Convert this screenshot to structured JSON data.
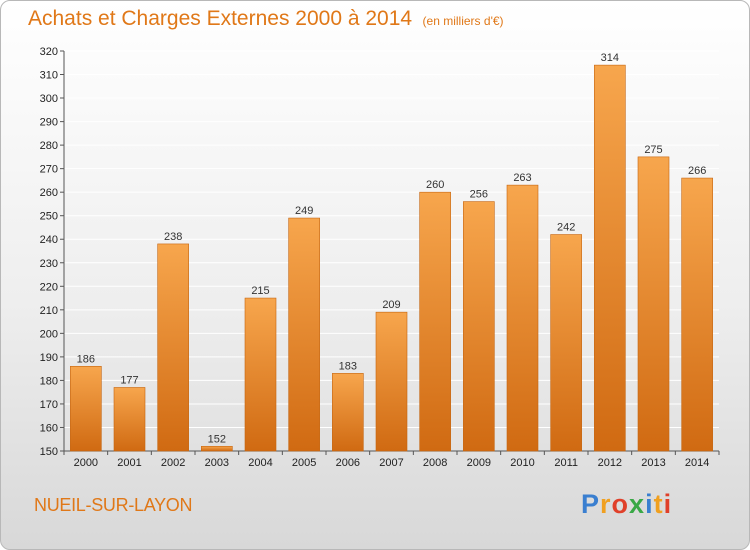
{
  "header": {
    "title": "Achats et Charges Externes 2000 à 2014",
    "subtitle": "(en milliers d'€)"
  },
  "footer": {
    "commune": "NUEIL-SUR-LAYON",
    "logo_letters": [
      {
        "char": "P",
        "color": "#3a7fd0"
      },
      {
        "char": "r",
        "color": "#f0a020"
      },
      {
        "char": "o",
        "color": "#e0402a"
      },
      {
        "char": "x",
        "color": "#39a846"
      },
      {
        "char": "i",
        "color": "#3a7fd0"
      },
      {
        "char": "t",
        "color": "#f0a020"
      },
      {
        "char": "i",
        "color": "#e0402a"
      }
    ]
  },
  "colors": {
    "accent": "#e07818",
    "bar_top": "#f7a64d",
    "bar_bottom": "#d06a12",
    "grid": "#ffffff"
  },
  "chart_data": {
    "type": "bar",
    "title": "Achats et Charges Externes 2000 à 2014",
    "subtitle": "(en milliers d'€)",
    "categories": [
      "2000",
      "2001",
      "2002",
      "2003",
      "2004",
      "2005",
      "2006",
      "2007",
      "2008",
      "2009",
      "2010",
      "2011",
      "2012",
      "2013",
      "2014"
    ],
    "values": [
      186,
      177,
      238,
      152,
      215,
      249,
      183,
      209,
      260,
      256,
      263,
      242,
      314,
      275,
      266
    ],
    "ylim": [
      150,
      320
    ],
    "yticks": [
      150,
      160,
      170,
      180,
      190,
      200,
      210,
      220,
      230,
      240,
      250,
      260,
      270,
      280,
      290,
      300,
      310,
      320
    ],
    "grid": true,
    "legend": "none"
  }
}
